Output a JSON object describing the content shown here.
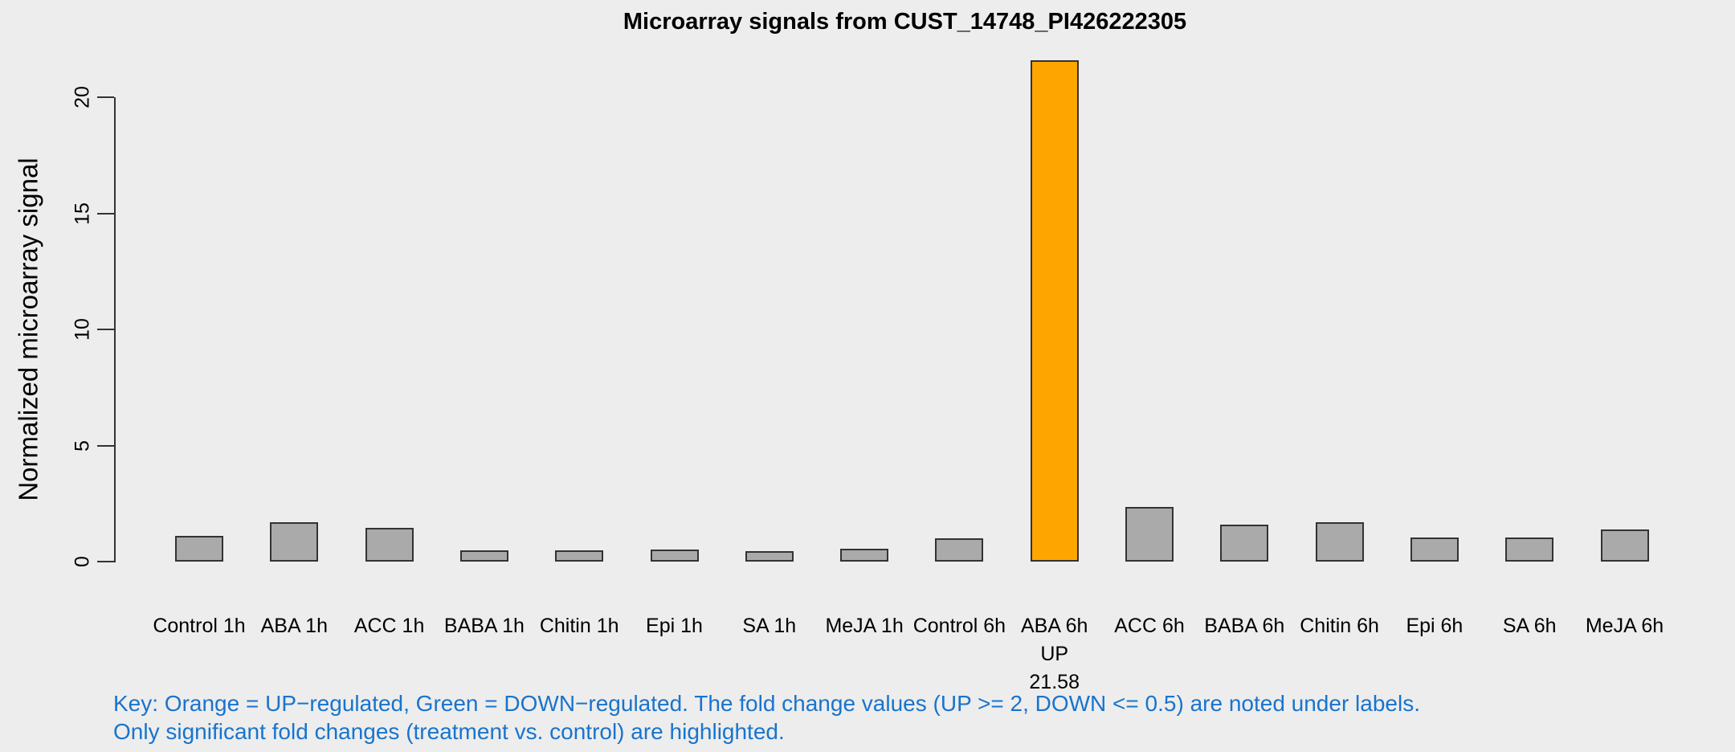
{
  "chart_data": {
    "type": "bar",
    "title": "Microarray signals from CUST_14748_PI426222305",
    "ylabel": "Normalized microarray signal",
    "xlabel": "",
    "ylim": [
      0,
      21.6
    ],
    "yticks": [
      0,
      5,
      10,
      15,
      20
    ],
    "grid": false,
    "legend": "none",
    "bars": [
      {
        "label": "Control 1h",
        "value": 1.1,
        "status": "none"
      },
      {
        "label": "ABA 1h",
        "value": 1.7,
        "status": "none"
      },
      {
        "label": "ACC 1h",
        "value": 1.45,
        "status": "none"
      },
      {
        "label": "BABA 1h",
        "value": 0.5,
        "status": "none"
      },
      {
        "label": "Chitin 1h",
        "value": 0.5,
        "status": "none"
      },
      {
        "label": "Epi 1h",
        "value": 0.52,
        "status": "none"
      },
      {
        "label": "SA 1h",
        "value": 0.45,
        "status": "none"
      },
      {
        "label": "MeJA 1h",
        "value": 0.55,
        "status": "none"
      },
      {
        "label": "Control 6h",
        "value": 1.0,
        "status": "none"
      },
      {
        "label": "ABA 6h",
        "value": 21.58,
        "status": "up",
        "status_label": "UP",
        "fold_change": "21.58"
      },
      {
        "label": "ACC 6h",
        "value": 2.35,
        "status": "none"
      },
      {
        "label": "BABA 6h",
        "value": 1.6,
        "status": "none"
      },
      {
        "label": "Chitin 6h",
        "value": 1.7,
        "status": "none"
      },
      {
        "label": "Epi 6h",
        "value": 1.05,
        "status": "none"
      },
      {
        "label": "SA 6h",
        "value": 1.05,
        "status": "none"
      },
      {
        "label": "MeJA 6h",
        "value": 1.4,
        "status": "none"
      }
    ],
    "colors": {
      "background": "#EDEDED",
      "bar_fill": "#AAAAAA",
      "bar_border": "#333333",
      "up_fill": "#FFA500",
      "axis": "#333333",
      "text": "#000000"
    }
  },
  "key": {
    "color": "#1874CD",
    "lines": [
      "Key: Orange = UP−regulated, Green = DOWN−regulated. The fold change values (UP >= 2, DOWN <= 0.5) are noted under labels.",
      "Only significant fold changes (treatment vs. control) are highlighted."
    ]
  }
}
